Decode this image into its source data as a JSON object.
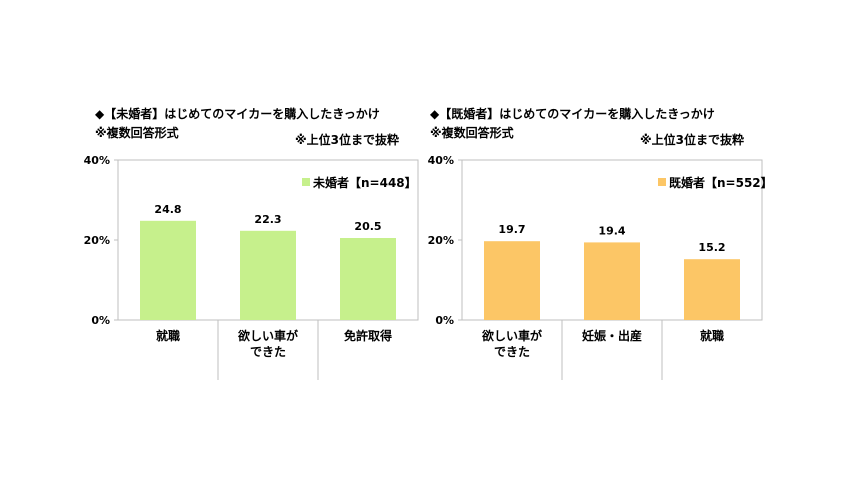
{
  "charts": [
    {
      "title": "◆【未婚者】はじめてのマイカーを購入したきっかけ",
      "note_left": "※複数回答形式",
      "note_right": "※上位3位まで抜粋",
      "bar_color": "#c6f08c",
      "chart_data": {
        "type": "bar",
        "categories": [
          "就職",
          [
            "欲しい車が",
            "できた"
          ],
          "免許取得"
        ],
        "values": [
          24.8,
          22.3,
          20.5
        ],
        "value_labels": [
          "24.8",
          "22.3",
          "20.5"
        ],
        "ylim": [
          0,
          40
        ],
        "yticks": [
          "0%",
          "20%",
          "40%"
        ],
        "legend": "未婚者【n=448】",
        "legend_position": "top-right",
        "grid": false
      }
    },
    {
      "title": "◆【既婚者】はじめてのマイカーを購入したきっかけ",
      "note_left": "※複数回答形式",
      "note_right": "※上位3位まで抜粋",
      "bar_color": "#fcc666",
      "chart_data": {
        "type": "bar",
        "categories": [
          [
            "欲しい車が",
            "できた"
          ],
          "妊娠・出産",
          "就職"
        ],
        "values": [
          19.7,
          19.4,
          15.2
        ],
        "value_labels": [
          "19.7",
          "19.4",
          "15.2"
        ],
        "ylim": [
          0,
          40
        ],
        "yticks": [
          "0%",
          "20%",
          "40%"
        ],
        "legend": "既婚者【n=552】",
        "legend_position": "top-right",
        "grid": false
      }
    }
  ]
}
